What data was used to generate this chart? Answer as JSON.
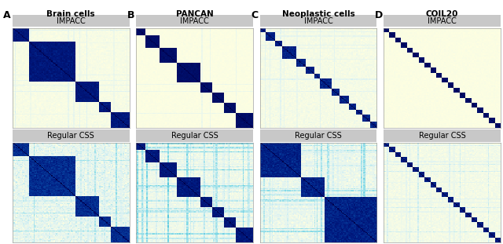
{
  "panel_labels": [
    "A",
    "B",
    "C",
    "D"
  ],
  "dataset_titles": [
    "Brain cells",
    "PANCAN",
    "Neoplastic cells",
    "COIL20"
  ],
  "row_labels": [
    "IMPACC",
    "Regular CSS"
  ],
  "background_color": "#ffffff",
  "header_bg_color": "#c8c8c8",
  "title_fontsize": 7,
  "panel_label_fontsize": 9,
  "figsize": [
    6.4,
    3.11
  ],
  "dpi": 100
}
